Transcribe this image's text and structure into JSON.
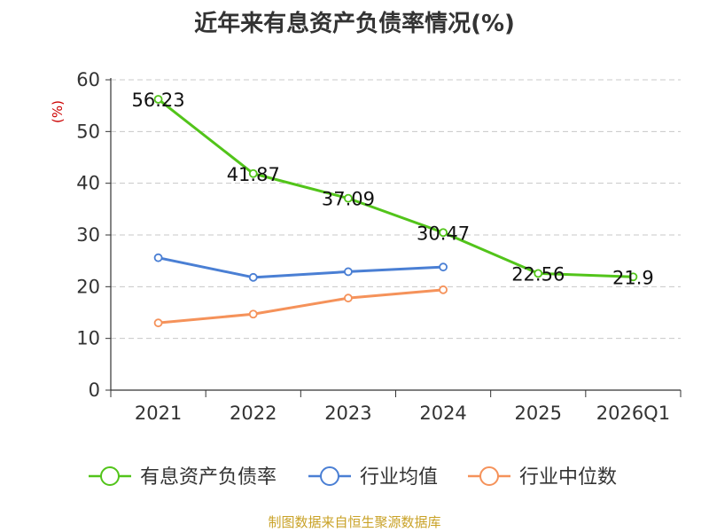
{
  "chart_data": {
    "type": "line",
    "title": "近年来有息资产负债率情况(%)",
    "ylabel": "(%)",
    "xlabel": "",
    "categories": [
      "2021",
      "2022",
      "2023",
      "2024",
      "2025",
      "2026Q1"
    ],
    "ylim": [
      0,
      60
    ],
    "yticks": [
      0,
      10,
      20,
      30,
      40,
      50,
      60
    ],
    "grid": true,
    "legend_position": "bottom",
    "series": [
      {
        "name": "有息资产负债率",
        "color": "#52c41a",
        "values": [
          56.23,
          41.87,
          37.09,
          30.47,
          22.56,
          21.9
        ],
        "labels": [
          "56.23",
          "41.87",
          "37.09",
          "30.47",
          "22.56",
          "21.9"
        ]
      },
      {
        "name": "行业均值",
        "color": "#4a7fd4",
        "values": [
          25.6,
          21.8,
          22.9,
          23.8,
          null,
          null
        ]
      },
      {
        "name": "行业中位数",
        "color": "#f5925a",
        "values": [
          13.0,
          14.7,
          17.8,
          19.4,
          null,
          null
        ]
      }
    ]
  },
  "source": "制图数据来自恒生聚源数据库"
}
